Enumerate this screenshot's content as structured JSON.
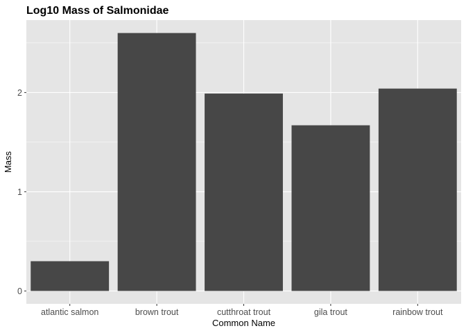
{
  "chart_data": {
    "type": "bar",
    "title": "Log10 Mass of Salmonidae",
    "xlabel": "Common Name",
    "ylabel": "Mass",
    "categories": [
      "atlantic salmon",
      "brown trout",
      "cutthroat trout",
      "gila trout",
      "rainbow trout"
    ],
    "values": [
      0.3,
      2.6,
      1.99,
      1.67,
      2.04
    ],
    "yticks": [
      0,
      1,
      2
    ],
    "ylim": [
      -0.13,
      2.73
    ],
    "grid": true,
    "bar_color": "#474747",
    "panel_background": "#e5e5e5",
    "grid_color": "#ffffff"
  }
}
